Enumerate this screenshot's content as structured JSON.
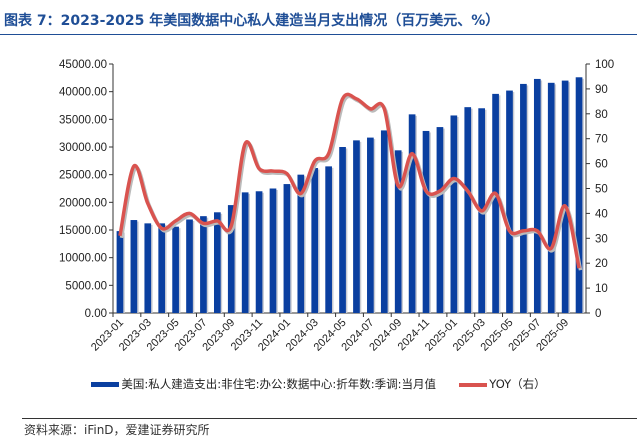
{
  "title": "图表 7：2023-2025 年美国数据中心私人建造当月支出情况（百万美元、%）",
  "source": "资料来源：iFinD，爱建证券研究所",
  "colors": {
    "bar": "#0a3fa0",
    "line": "#d9534f",
    "title": "#1f4e96"
  },
  "chart_data": {
    "type": "bar+line",
    "categories": [
      "2023-01",
      "2023-02",
      "2023-03",
      "2023-04",
      "2023-05",
      "2023-06",
      "2023-07",
      "2023-08",
      "2023-09",
      "2023-10",
      "2023-11",
      "2023-12",
      "2024-01",
      "2024-02",
      "2024-03",
      "2024-04",
      "2024-05",
      "2024-06",
      "2024-07",
      "2024-08",
      "2024-09",
      "2024-10",
      "2024-11",
      "2024-12",
      "2025-01",
      "2025-02",
      "2025-03",
      "2025-04",
      "2025-05",
      "2025-06",
      "2025-07",
      "2025-08",
      "2025-09",
      "2025-10"
    ],
    "x_tick_labels": [
      "2023-01",
      "2023-03",
      "2023-05",
      "2023-07",
      "2023-09",
      "2023-11",
      "2024-01",
      "2024-03",
      "2024-05",
      "2024-07",
      "2024-09",
      "2024-11",
      "2025-01",
      "2025-03",
      "2025-05",
      "2025-07",
      "2025-09"
    ],
    "series": [
      {
        "name": "美国:私人建造支出:非住宅:办公:数据中心:折年数:季调:当月值",
        "type": "bar",
        "axis": "left",
        "values": [
          14800,
          16800,
          16200,
          16200,
          15600,
          16900,
          17500,
          18200,
          19500,
          21800,
          22000,
          22500,
          23300,
          25000,
          26200,
          26500,
          30000,
          31200,
          31700,
          33000,
          29400,
          35900,
          32900,
          33600,
          35700,
          37200,
          37000,
          39600,
          40200,
          41400,
          42300,
          41600,
          42000,
          42600
        ]
      },
      {
        "name": "YOY（右）",
        "type": "line",
        "axis": "right",
        "values": [
          31,
          59,
          44,
          34,
          37,
          40,
          36,
          37,
          35,
          68,
          58,
          57,
          56,
          48,
          61,
          64,
          86,
          86,
          82,
          82,
          51,
          64,
          49,
          49,
          54,
          49,
          41,
          48,
          33,
          33,
          33,
          26,
          43,
          18
        ]
      }
    ],
    "y_left": {
      "range": [
        0,
        45000
      ],
      "ticks": [
        "0.00",
        "5000.00",
        "10000.00",
        "15000.00",
        "20000.00",
        "25000.00",
        "30000.00",
        "35000.00",
        "40000.00",
        "45000.00"
      ]
    },
    "y_right": {
      "range": [
        0,
        100
      ],
      "ticks": [
        "0",
        "10",
        "20",
        "30",
        "40",
        "50",
        "60",
        "70",
        "80",
        "90",
        "100"
      ]
    },
    "grid": false,
    "legend": "bottom"
  }
}
